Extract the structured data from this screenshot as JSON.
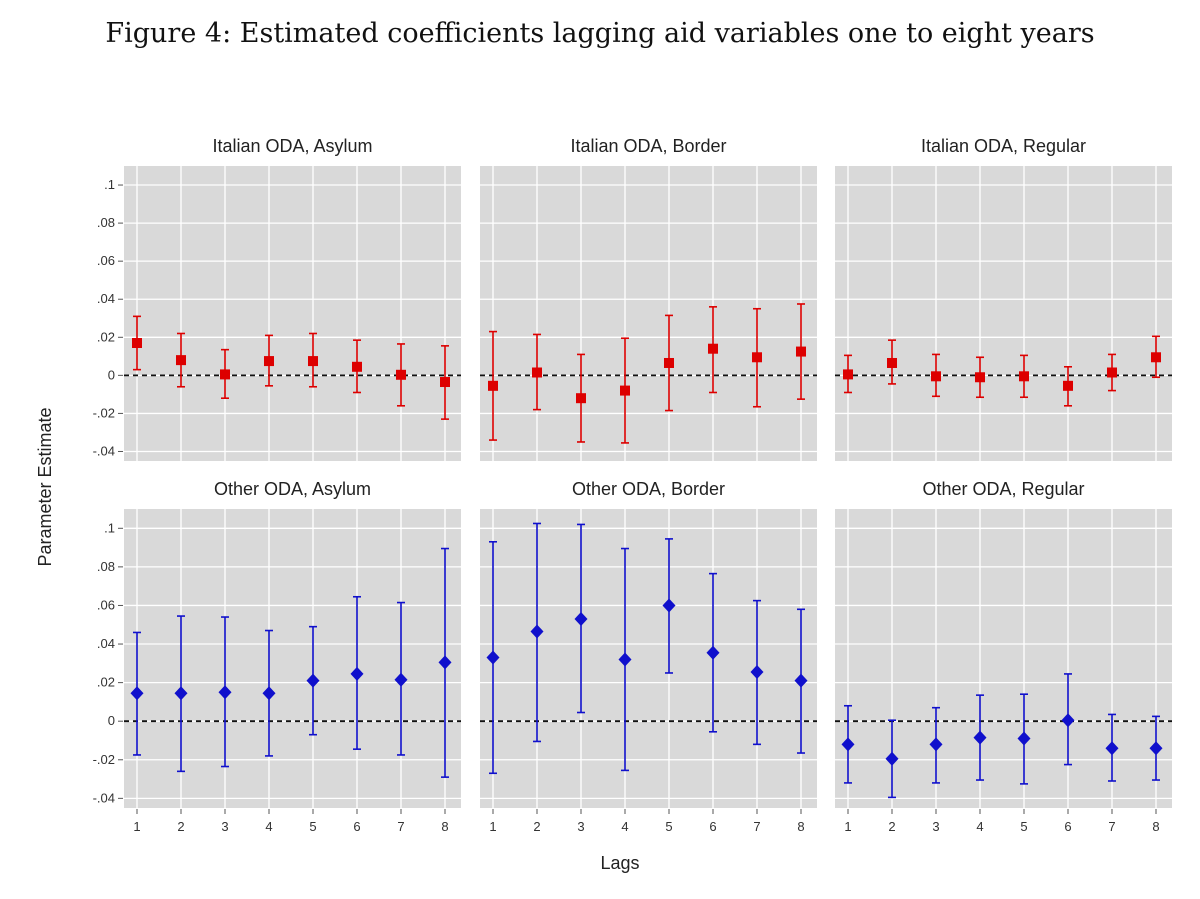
{
  "figure_caption": "Figure 4: Estimated coefficients lagging aid variables one to eight years",
  "colors": {
    "red_series": "#dd0000",
    "blue_series": "#1010cc",
    "panel_bg": "#d9d9d9"
  },
  "chart_data": {
    "type": "scatter",
    "subtype": "point-estimates-with-error-bars",
    "xlabel": "Lags",
    "ylabel": "Parameter Estimate",
    "grid": true,
    "reference_line": 0,
    "x_ticks": [
      "1",
      "2",
      "3",
      "4",
      "5",
      "6",
      "7",
      "8"
    ],
    "y_tick_labels": [
      "-.04",
      "-.02",
      "0",
      ".02",
      ".04",
      ".06",
      ".08",
      ".1"
    ],
    "y_tick_values": [
      -0.04,
      -0.02,
      0,
      0.02,
      0.04,
      0.06,
      0.08,
      0.1
    ],
    "ylim": [
      -0.045,
      0.11
    ],
    "panels": [
      {
        "title": "Italian ODA, Asylum",
        "marker": "square",
        "color": "#dd0000",
        "estimate": [
          0.017,
          0.008,
          0.0005,
          0.0075,
          0.0075,
          0.0045,
          0.0003,
          -0.0035
        ],
        "lower": [
          0.003,
          -0.006,
          -0.012,
          -0.0055,
          -0.006,
          -0.009,
          -0.016,
          -0.023
        ],
        "upper": [
          0.031,
          0.022,
          0.0135,
          0.021,
          0.022,
          0.0185,
          0.0165,
          0.0155
        ]
      },
      {
        "title": "Italian ODA, Border",
        "marker": "square",
        "color": "#dd0000",
        "estimate": [
          -0.0055,
          0.0015,
          -0.012,
          -0.008,
          0.0065,
          0.014,
          0.0095,
          0.0125
        ],
        "lower": [
          -0.034,
          -0.018,
          -0.035,
          -0.0355,
          -0.0185,
          -0.009,
          -0.0165,
          -0.0125
        ],
        "upper": [
          0.023,
          0.0215,
          0.011,
          0.0195,
          0.0315,
          0.036,
          0.035,
          0.0375
        ]
      },
      {
        "title": "Italian ODA, Regular",
        "marker": "square",
        "color": "#dd0000",
        "estimate": [
          0.0005,
          0.0065,
          -0.0005,
          -0.001,
          -0.0005,
          -0.0055,
          0.0015,
          0.0095
        ],
        "lower": [
          -0.009,
          -0.0045,
          -0.011,
          -0.0115,
          -0.0115,
          -0.016,
          -0.008,
          -0.001
        ],
        "upper": [
          0.0105,
          0.0185,
          0.011,
          0.0095,
          0.0105,
          0.0045,
          0.011,
          0.0205
        ]
      },
      {
        "title": "Other ODA, Asylum",
        "marker": "diamond",
        "color": "#1010cc",
        "estimate": [
          0.0145,
          0.0145,
          0.015,
          0.0145,
          0.021,
          0.0245,
          0.0215,
          0.0305
        ],
        "lower": [
          -0.0175,
          -0.026,
          -0.0235,
          -0.018,
          -0.007,
          -0.0145,
          -0.0175,
          -0.029
        ],
        "upper": [
          0.046,
          0.0545,
          0.054,
          0.047,
          0.049,
          0.0645,
          0.0615,
          0.0895
        ]
      },
      {
        "title": "Other ODA, Border",
        "marker": "diamond",
        "color": "#1010cc",
        "estimate": [
          0.033,
          0.0465,
          0.053,
          0.032,
          0.06,
          0.0355,
          0.0255,
          0.021
        ],
        "lower": [
          -0.027,
          -0.0105,
          0.0045,
          -0.0255,
          0.025,
          -0.0055,
          -0.012,
          -0.0165
        ],
        "upper": [
          0.093,
          0.1025,
          0.102,
          0.0895,
          0.0945,
          0.0765,
          0.0625,
          0.058
        ]
      },
      {
        "title": "Other ODA, Regular",
        "marker": "diamond",
        "color": "#1010cc",
        "estimate": [
          -0.012,
          -0.0195,
          -0.012,
          -0.0085,
          -0.009,
          0.0005,
          -0.014,
          -0.014
        ],
        "lower": [
          -0.032,
          -0.0395,
          -0.032,
          -0.0305,
          -0.0325,
          -0.0225,
          -0.031,
          -0.0305
        ],
        "upper": [
          0.008,
          0.0005,
          0.007,
          0.0135,
          0.014,
          0.0245,
          0.0035,
          0.0025
        ]
      }
    ]
  }
}
